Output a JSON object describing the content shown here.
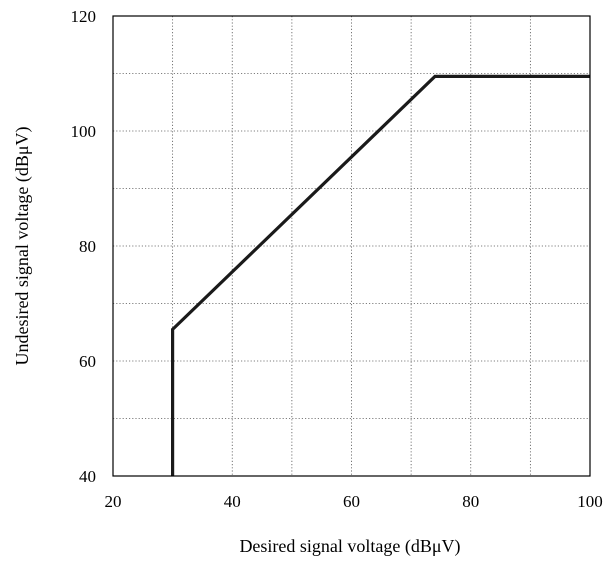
{
  "chart_data": {
    "type": "line",
    "title": "",
    "xlabel": "Desired signal voltage (dBμV)",
    "ylabel": "Undesired signal voltage (dBμV)",
    "xlim": [
      20,
      100
    ],
    "ylim": [
      40,
      120
    ],
    "x_ticks": [
      20,
      40,
      60,
      80,
      100
    ],
    "y_ticks": [
      40,
      60,
      80,
      100,
      120
    ],
    "minor_grid_step": 10,
    "grid": true,
    "grid_style": "dotted",
    "legend": "none",
    "line_color": "#1a1a1a",
    "series": [
      {
        "x": [
          30,
          30,
          74,
          100
        ],
        "y": [
          40,
          65.5,
          109.5,
          109.5
        ]
      }
    ]
  }
}
